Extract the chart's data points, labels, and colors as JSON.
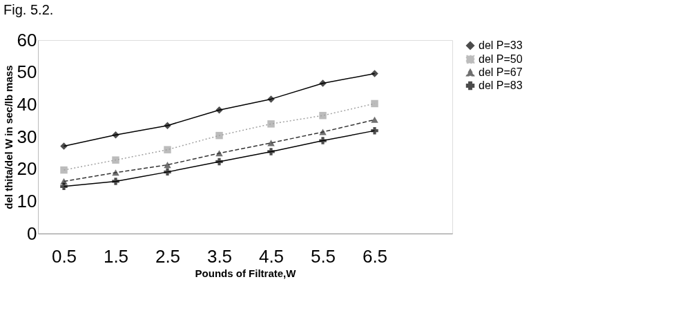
{
  "chart_data": {
    "type": "line",
    "title": "Fig. 5.2.",
    "xlabel": "Pounds of Filtrate,W",
    "ylabel": "del thita/del W in sec/lb mass",
    "categories": [
      "0.5",
      "1.5",
      "2.5",
      "3.5",
      "4.5",
      "5.5",
      "6.5"
    ],
    "series": [
      {
        "name": "del P=33",
        "color": "#000000",
        "marker": "diamond",
        "line_style": "solid",
        "values": [
          27.1,
          30.6,
          33.5,
          38.3,
          41.7,
          46.6,
          49.6
        ]
      },
      {
        "name": "del P=50",
        "color": "#a0a0a0",
        "marker": "square",
        "line_style": "dotted",
        "values": [
          19.7,
          22.8,
          26.0,
          30.4,
          34.0,
          36.6,
          40.3
        ]
      },
      {
        "name": "del P=67",
        "color": "#333333",
        "marker": "triangle",
        "line_style": "dashed",
        "values": [
          16.2,
          18.9,
          21.3,
          24.9,
          28.1,
          31.5,
          35.3
        ]
      },
      {
        "name": "del P=83",
        "color": "#000000",
        "marker": "cross",
        "line_style": "solid",
        "values": [
          14.6,
          16.2,
          19.1,
          22.3,
          25.4,
          28.8,
          31.9
        ]
      }
    ],
    "ylim": [
      0,
      60
    ],
    "yticks": [
      0,
      10,
      20,
      30,
      40,
      50,
      60
    ],
    "grid": false,
    "legend": "right"
  }
}
